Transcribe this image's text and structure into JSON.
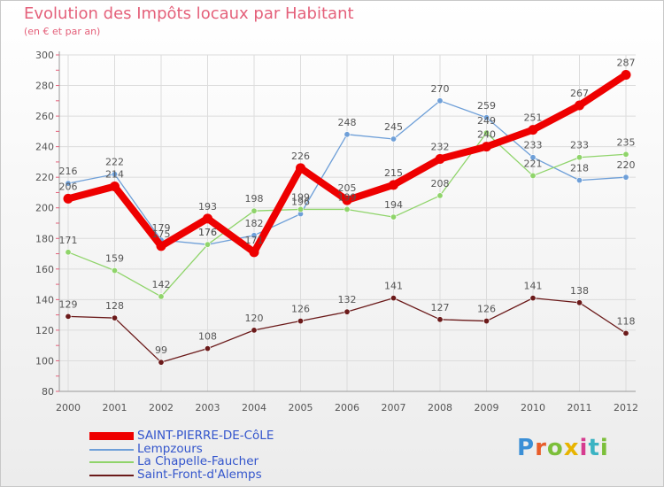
{
  "chart_data": {
    "type": "line",
    "title": "Evolution des Impôts locaux par Habitant",
    "subtitle": "(en € et par an)",
    "xlabel": "",
    "ylabel": "",
    "x": [
      "2000",
      "2001",
      "2002",
      "2003",
      "2004",
      "2005",
      "2006",
      "2007",
      "2008",
      "2009",
      "2010",
      "2011",
      "2012"
    ],
    "ylim": [
      80,
      300
    ],
    "yticks": [
      80,
      100,
      120,
      140,
      160,
      180,
      200,
      220,
      240,
      260,
      280,
      300
    ],
    "legend_position": "bottom-left",
    "series": [
      {
        "name": "SAINT-PIERRE-DE-CôLE",
        "color": "#ee0000",
        "style": "thick",
        "values": [
          206,
          214,
          175,
          193,
          171,
          226,
          205,
          215,
          232,
          240,
          251,
          267,
          287
        ]
      },
      {
        "name": "Lempzours",
        "color": "#6e9fd8",
        "style": "thin",
        "values": [
          216,
          222,
          179,
          176,
          182,
          196,
          248,
          245,
          270,
          259,
          233,
          218,
          220
        ]
      },
      {
        "name": "La Chapelle-Faucher",
        "color": "#8fd46a",
        "style": "thin",
        "values": [
          171,
          159,
          142,
          176,
          198,
          199,
          199,
          194,
          208,
          249,
          221,
          233,
          235
        ]
      },
      {
        "name": "Saint-Front-d'Alemps",
        "color": "#6b1a1a",
        "style": "thin",
        "values": [
          129,
          128,
          99,
          108,
          120,
          126,
          132,
          141,
          127,
          126,
          141,
          138,
          118
        ]
      }
    ]
  },
  "logo": {
    "text": "Proxiti"
  }
}
